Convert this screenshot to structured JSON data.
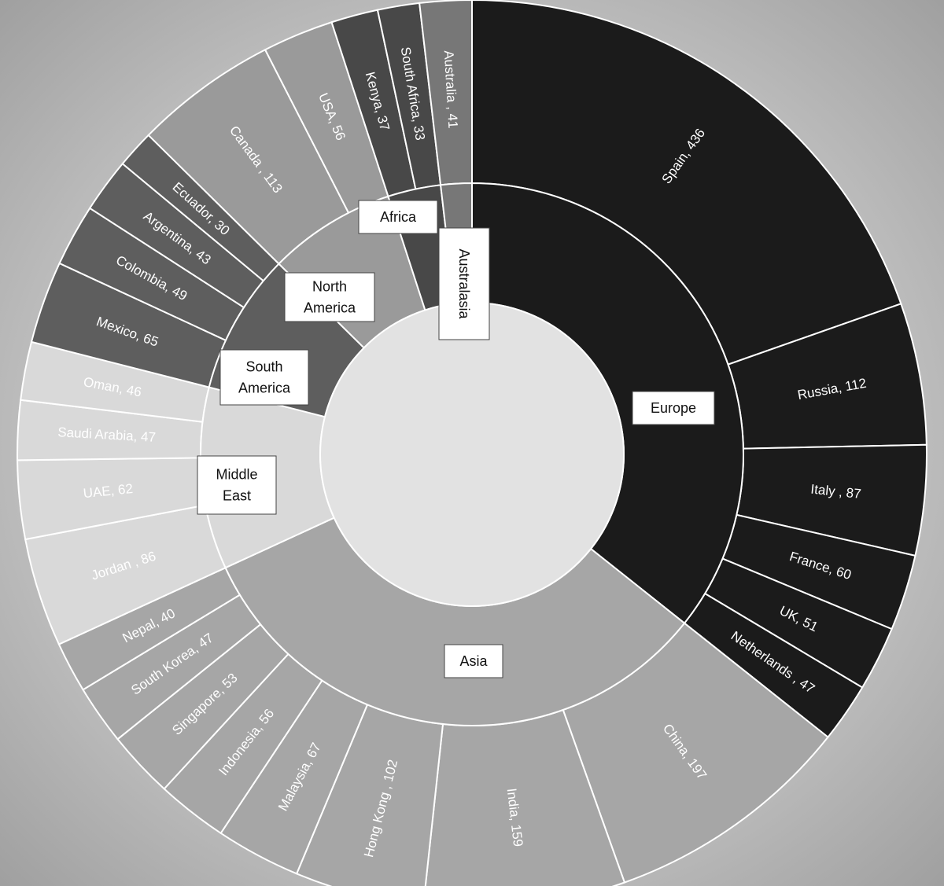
{
  "chart_data": {
    "type": "sunburst",
    "groups": [
      {
        "name": "Europe",
        "label_lines": [
          "Europe"
        ],
        "color": "#1b1b1b",
        "children": [
          {
            "label": "Spain, 436",
            "name": "Spain",
            "value": 436
          },
          {
            "label": "Russia, 112",
            "name": "Russia",
            "value": 112
          },
          {
            "label": "Italy , 87",
            "name": "Italy",
            "value": 87
          },
          {
            "label": "France, 60",
            "name": "France",
            "value": 60
          },
          {
            "label": "UK, 51",
            "name": "UK",
            "value": 51
          },
          {
            "label": "Netherlands , 47",
            "name": "Netherlands",
            "value": 47
          }
        ]
      },
      {
        "name": "Asia",
        "label_lines": [
          "Asia"
        ],
        "color": "#a6a6a6",
        "children": [
          {
            "label": "China, 197",
            "name": "China",
            "value": 197
          },
          {
            "label": "India, 159",
            "name": "India",
            "value": 159
          },
          {
            "label": "Hong Kong , 102",
            "name": "Hong Kong",
            "value": 102
          },
          {
            "label": "Malaysia, 67",
            "name": "Malaysia",
            "value": 67
          },
          {
            "label": "Indonesia, 56",
            "name": "Indonesia",
            "value": 56
          },
          {
            "label": "Singapore, 53",
            "name": "Singapore",
            "value": 53
          },
          {
            "label": "South Korea, 47",
            "name": "South Korea",
            "value": 47
          },
          {
            "label": "Nepal, 40",
            "name": "Nepal",
            "value": 40
          }
        ]
      },
      {
        "name": "Middle East",
        "label_lines": [
          "Middle",
          "East"
        ],
        "color": "#d9d9d9",
        "children": [
          {
            "label": "Jordan , 86",
            "name": "Jordan",
            "value": 86
          },
          {
            "label": "UAE, 62",
            "name": "UAE",
            "value": 62
          },
          {
            "label": "Saudi Arabia, 47",
            "name": "Saudi Arabia",
            "value": 47
          },
          {
            "label": "Oman, 46",
            "name": "Oman",
            "value": 46
          }
        ]
      },
      {
        "name": "South America",
        "label_lines": [
          "South",
          "America"
        ],
        "color": "#5e5e5e",
        "children": [
          {
            "label": "Mexico, 65",
            "name": "Mexico",
            "value": 65
          },
          {
            "label": "Colombia, 49",
            "name": "Colombia",
            "value": 49
          },
          {
            "label": "Argentina, 43",
            "name": "Argentina",
            "value": 43
          },
          {
            "label": "Ecuador, 30",
            "name": "Ecuador",
            "value": 30
          }
        ]
      },
      {
        "name": "North America",
        "label_lines": [
          "North",
          "America"
        ],
        "color": "#9a9a9a",
        "children": [
          {
            "label": "Canada , 113",
            "name": "Canada",
            "value": 113
          },
          {
            "label": "USA, 56",
            "name": "USA",
            "value": 56
          }
        ]
      },
      {
        "name": "Africa",
        "label_lines": [
          "Africa"
        ],
        "color": "#484848",
        "children": [
          {
            "label": "Kenya, 37",
            "name": "Kenya",
            "value": 37
          },
          {
            "label": "South Africa, 33",
            "name": "South Africa",
            "value": 33
          }
        ]
      },
      {
        "name": "Australasia",
        "label_lines": [
          "Australasia"
        ],
        "color": "#777777",
        "children": [
          {
            "label": "Australia , 41",
            "name": "Australia",
            "value": 41
          }
        ]
      }
    ]
  },
  "colors": {
    "background_center": "#f7f7f7",
    "background_edge": "#9e9e9e",
    "hole": "#e2e2e2",
    "stroke": "#ffffff",
    "box_fill": "#ffffff",
    "box_stroke": "#444444"
  }
}
